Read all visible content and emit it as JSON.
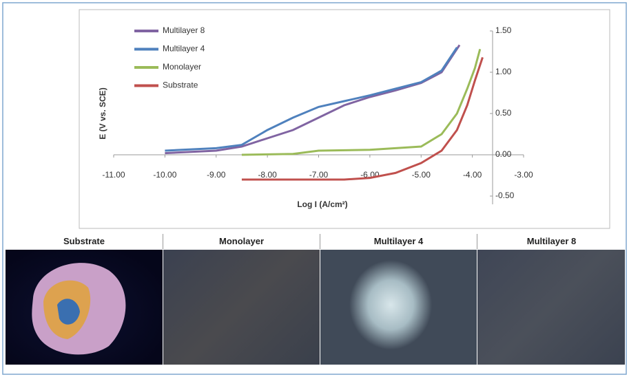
{
  "chart_data": {
    "type": "line",
    "x_label": "Log I (A/cm²)",
    "y_label": "E (V vs. SCE)",
    "xlim": [
      -11,
      -3
    ],
    "ylim": [
      -0.5,
      1.5
    ],
    "xticks": [
      {
        "value": -11,
        "label": "-11.00"
      },
      {
        "value": -10,
        "label": "-10.00"
      },
      {
        "value": -9,
        "label": "-9.00"
      },
      {
        "value": -8,
        "label": "-8.00"
      },
      {
        "value": -7,
        "label": "-7.00"
      },
      {
        "value": -6,
        "label": "-6.00"
      },
      {
        "value": -5,
        "label": "-5.00"
      },
      {
        "value": -4,
        "label": "-4.00"
      },
      {
        "value": -3,
        "label": "-3.00"
      }
    ],
    "yticks": [
      {
        "value": -0.5,
        "label": "-0.50"
      },
      {
        "value": 0,
        "label": "0.00"
      },
      {
        "value": 0.5,
        "label": "0.50"
      },
      {
        "value": 1,
        "label": "1.00"
      },
      {
        "value": 1.5,
        "label": "1.50"
      }
    ],
    "series": [
      {
        "name": "Multilayer 8",
        "color": "#8064a2",
        "x": [
          -10,
          -9,
          -8.5,
          -8,
          -7.5,
          -7,
          -6.5,
          -6,
          -5.5,
          -5,
          -4.6,
          -4.25
        ],
        "values": [
          0.02,
          0.05,
          0.1,
          0.2,
          0.3,
          0.45,
          0.6,
          0.7,
          0.78,
          0.87,
          1.0,
          1.33
        ]
      },
      {
        "name": "Multilayer 4",
        "color": "#4f81bd",
        "x": [
          -10,
          -9,
          -8.5,
          -8,
          -7.5,
          -7,
          -6.5,
          -6,
          -5.5,
          -5,
          -4.6,
          -4.3
        ],
        "values": [
          0.05,
          0.08,
          0.12,
          0.3,
          0.45,
          0.58,
          0.65,
          0.72,
          0.8,
          0.88,
          1.02,
          1.3
        ]
      },
      {
        "name": "Monolayer",
        "color": "#9bbb59",
        "x": [
          -8.5,
          -7.5,
          -7,
          -6,
          -5,
          -4.6,
          -4.3,
          -4.1,
          -3.95,
          -3.85
        ],
        "values": [
          0,
          0.01,
          0.05,
          0.06,
          0.1,
          0.25,
          0.5,
          0.8,
          1.05,
          1.28
        ]
      },
      {
        "name": "Substrate",
        "color": "#c0504d",
        "x": [
          -8.5,
          -6.5,
          -6,
          -5.5,
          -5,
          -4.6,
          -4.3,
          -4.1,
          -3.95,
          -3.8
        ],
        "values": [
          -0.3,
          -0.3,
          -0.28,
          -0.22,
          -0.1,
          0.05,
          0.3,
          0.6,
          0.9,
          1.18
        ]
      }
    ]
  },
  "panel_headers": [
    "Substrate",
    "Monolayer",
    "Multilayer 4",
    "Multilayer 8"
  ]
}
